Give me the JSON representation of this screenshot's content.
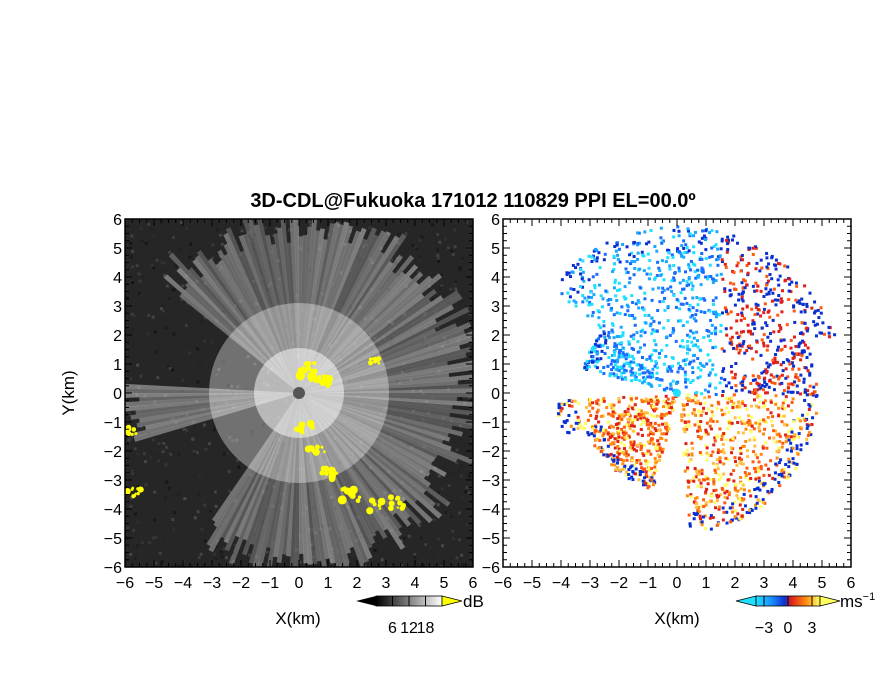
{
  "chart_data": [
    {
      "type": "heatmap",
      "panel": "left",
      "title": "3D-CDL@Fukuoka 171012 110829 PPI EL=00.0º",
      "xlabel": "X(km)",
      "ylabel": "Y(km)",
      "xlim": [
        -6,
        6
      ],
      "ylim": [
        -6,
        6
      ],
      "x_ticks": [
        "−6",
        "−5",
        "−4",
        "−3",
        "−2",
        "−1",
        "0",
        "1",
        "2",
        "3",
        "4",
        "5",
        "6"
      ],
      "y_ticks": [
        "−6",
        "−5",
        "−4",
        "−3",
        "−2",
        "−1",
        "0",
        "1",
        "2",
        "3",
        "4",
        "5",
        "6"
      ],
      "quantity": "backscatter intensity",
      "colormap": "grayscale",
      "highlight_color": "#ffff00",
      "colorbar": {
        "unit": "dB",
        "ticks": [
          "6",
          "12",
          "18"
        ],
        "range": [
          0,
          24
        ]
      }
    },
    {
      "type": "heatmap",
      "panel": "right",
      "xlabel": "X(km)",
      "xlim": [
        -6,
        6
      ],
      "ylim": [
        -6,
        6
      ],
      "x_ticks": [
        "−6",
        "−5",
        "−4",
        "−3",
        "−2",
        "−1",
        "0",
        "1",
        "2",
        "3",
        "4",
        "5",
        "6"
      ],
      "y_ticks": [
        "−6",
        "−5",
        "−4",
        "−3",
        "−2",
        "−1",
        "0",
        "1",
        "2",
        "3",
        "4",
        "5",
        "6"
      ],
      "quantity": "radial velocity",
      "colormap": "cyan-blue-red-yellow diverging",
      "colorbar": {
        "unit": "ms",
        "unit_superscript": "−1",
        "ticks": [
          "−3",
          "0",
          "3"
        ],
        "range": [
          -4,
          4
        ]
      }
    }
  ]
}
